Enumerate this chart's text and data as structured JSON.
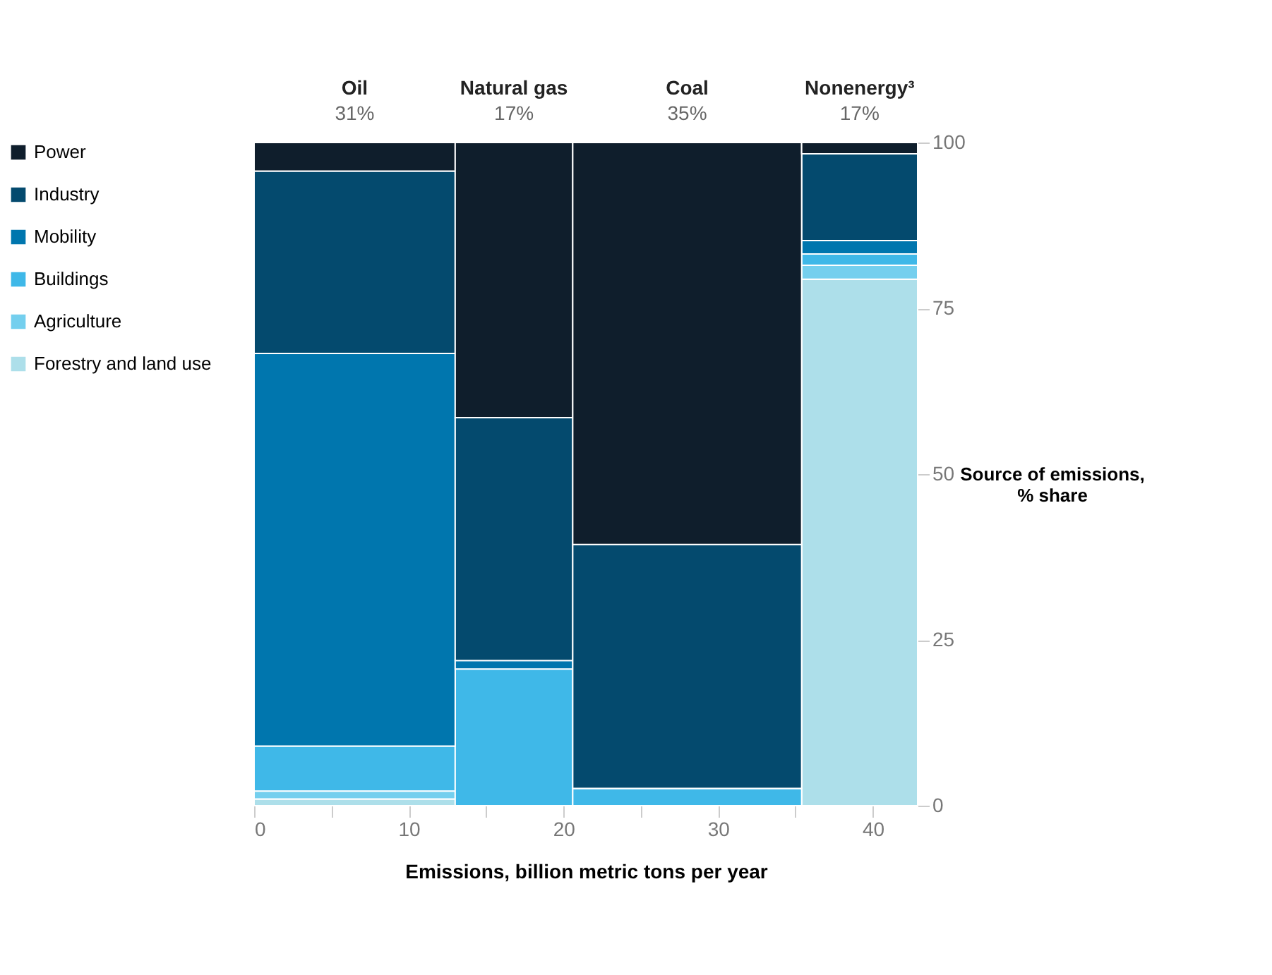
{
  "chart_data": {
    "type": "bar",
    "stacked": true,
    "x": [
      6.5,
      16.8,
      28.0,
      39.15
    ],
    "annotations": [
      "Oil",
      "31%",
      "Natural gas",
      "17%",
      "Coal",
      "35%",
      "Nonenergy³",
      "17%"
    ],
    "xlabel": "Emissions, billion metric tons per year",
    "ylabel": "Source of emissions, % share",
    "xlim": [
      0,
      42.9
    ],
    "ylim": [
      0,
      100
    ],
    "xticks": [
      0,
      {
        "value": 5,
        "label": null
      },
      10,
      {
        "value": 15,
        "label": null
      },
      20,
      {
        "value": 25,
        "label": null
      },
      30,
      {
        "value": 35,
        "label": null
      },
      40
    ],
    "yticks": [
      0,
      25,
      50,
      75,
      100
    ],
    "legend": "left",
    "series": [
      {
        "name": "Forestry and land use",
        "color": "#addfea",
        "values": [
          1.0,
          0,
          0,
          79.4
        ]
      },
      {
        "name": "Agriculture",
        "color": "#74cfee",
        "values": [
          1.2,
          0,
          0,
          2.1
        ]
      },
      {
        "name": "Buildings",
        "color": "#3fb8e8",
        "values": [
          6.8,
          20.6,
          2.6,
          1.7
        ]
      },
      {
        "name": "Mobility",
        "color": "#0076ae",
        "values": [
          59.2,
          1.3,
          0,
          2.0
        ]
      },
      {
        "name": "Industry",
        "color": "#044a6e",
        "values": [
          27.5,
          36.6,
          36.8,
          13.1
        ]
      },
      {
        "name": "Power",
        "color": "#0f1e2c",
        "values": [
          4.3,
          41.5,
          60.6,
          1.7
        ]
      }
    ]
  }
}
